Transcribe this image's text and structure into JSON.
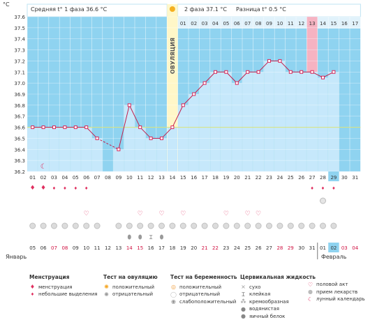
{
  "header": {
    "unit": "°C",
    "phase1_text": "Средняя t° 1 фаза 36.6 °C",
    "phase2_text": "2 фаза 37.1 °C",
    "diff_text": "Разница t° 0.5 °C",
    "ovulation_label": "ОВУЛЯЦИЯ"
  },
  "colors": {
    "phase1_bg": "#8fd3f0",
    "phase2_bg": "#e1f2fb",
    "ovulation_col": "#fff7c8",
    "highlight_col": "#f6b3c2",
    "bar_fill": "#c6e8fb",
    "line": "#c21f4c",
    "marker": "#d8285a",
    "coverline": "#d8e27a"
  },
  "chart_data": {
    "type": "line",
    "ylabel": "°C",
    "ylim": [
      36.2,
      37.6
    ],
    "yticks": [
      36.2,
      36.3,
      36.4,
      36.5,
      36.6,
      36.7,
      36.8,
      36.9,
      37.0,
      37.1,
      37.2,
      37.3,
      37.4,
      37.5,
      37.6
    ],
    "cycle_days": [
      "01",
      "02",
      "03",
      "04",
      "05",
      "06",
      "07",
      "08",
      "09",
      "10",
      "11",
      "12",
      "13",
      "14",
      "15",
      "16",
      "17",
      "18",
      "19",
      "20",
      "21",
      "22",
      "23",
      "24",
      "25",
      "26",
      "27",
      "28",
      "29",
      "30",
      "31"
    ],
    "phase2_days": [
      "01",
      "02",
      "03",
      "04",
      "05",
      "06",
      "07",
      "08",
      "09",
      "10",
      "11",
      "12",
      "13",
      "14",
      "15",
      "16",
      "17"
    ],
    "temps": [
      36.6,
      36.6,
      36.6,
      36.6,
      36.6,
      36.6,
      36.5,
      null,
      36.4,
      36.8,
      36.6,
      36.5,
      36.5,
      36.6,
      36.8,
      36.9,
      37.0,
      37.1,
      37.1,
      37.0,
      37.1,
      37.1,
      37.2,
      37.2,
      37.1,
      37.1,
      37.1,
      37.05,
      37.1,
      null,
      null
    ],
    "coverline": 36.6,
    "ovulation_day": 14,
    "highlight_day": 27,
    "current_day": 29,
    "dates": [
      "05",
      "06",
      "07",
      "08",
      "09",
      "10",
      "11",
      "12",
      "13",
      "14",
      "15",
      "16",
      "17",
      "18",
      "19",
      "20",
      "21",
      "22",
      "23",
      "24",
      "25",
      "26",
      "27",
      "28",
      "29",
      "30",
      "31",
      "01",
      "02",
      "03",
      "04"
    ],
    "weekend_dates": [
      "07",
      "08",
      "14",
      "15",
      "21",
      "22",
      "28",
      "29",
      "03",
      "04"
    ],
    "month_start": "Январь",
    "month_next": "Февраль",
    "menstruation": [
      2,
      2,
      1,
      1,
      1,
      1,
      0,
      0,
      0,
      0,
      0,
      0,
      0,
      0,
      0,
      0,
      0,
      0,
      0,
      0,
      0,
      0,
      0,
      0,
      0,
      0,
      1,
      1,
      1,
      0,
      0
    ],
    "moon_day": 2,
    "ov_test": [
      0,
      0,
      0,
      0,
      0,
      0,
      0,
      0,
      0,
      0,
      0,
      0,
      0,
      0,
      0,
      0,
      0,
      0,
      0,
      0,
      0,
      0,
      0,
      0,
      0,
      0,
      0,
      1,
      0,
      0,
      0
    ],
    "intercourse_days": [
      6,
      11,
      13,
      15,
      19,
      21,
      22
    ],
    "preg_test": [
      1,
      1,
      1,
      1,
      1,
      1,
      1,
      0,
      1,
      1,
      1,
      1,
      1,
      1,
      1,
      1,
      1,
      1,
      1,
      1,
      1,
      1,
      1,
      1,
      1,
      1,
      1,
      1,
      1,
      0,
      0
    ],
    "fluid": {
      "10": "egg",
      "11": "egg",
      "12": "sticky",
      "13": "egg"
    }
  },
  "legend": {
    "menstruation": {
      "title": "Менструация",
      "items": [
        "менструация",
        "небольшие выделения"
      ]
    },
    "ovulation_test": {
      "title": "Тест на овуляцию",
      "items": [
        "положительный",
        "отрицательный"
      ]
    },
    "pregnancy_test": {
      "title": "Тест на беременность",
      "items": [
        "положительный",
        "отрицательный",
        "слабоположительный"
      ]
    },
    "cervical_fluid": {
      "title": "Цервикальная жидкость",
      "items": [
        "сухо",
        "клейкая",
        "кремообразная",
        "водянистая",
        "яичный белок"
      ]
    },
    "other": {
      "items": [
        "половой акт",
        "прием лекарств",
        "лунный календарь"
      ]
    }
  }
}
